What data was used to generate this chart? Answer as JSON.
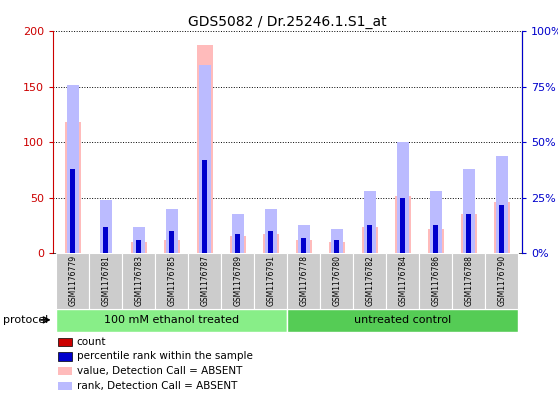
{
  "title": "GDS5082 / Dr.25246.1.S1_at",
  "samples": [
    "GSM1176779",
    "GSM1176781",
    "GSM1176783",
    "GSM1176785",
    "GSM1176787",
    "GSM1176789",
    "GSM1176791",
    "GSM1176778",
    "GSM1176780",
    "GSM1176782",
    "GSM1176784",
    "GSM1176786",
    "GSM1176788",
    "GSM1176790"
  ],
  "absent_value": [
    118,
    0,
    10,
    12,
    188,
    16,
    18,
    12,
    10,
    24,
    52,
    22,
    36,
    46
  ],
  "absent_rank": [
    76,
    24,
    12,
    20,
    85,
    18,
    20,
    13,
    11,
    28,
    50,
    28,
    38,
    44
  ],
  "count_val": [
    5,
    4,
    2,
    4,
    6,
    2,
    3,
    2,
    2,
    2,
    4,
    2,
    4,
    4
  ],
  "rank_val": [
    38,
    12,
    6,
    10,
    42,
    9,
    10,
    7,
    6,
    13,
    25,
    13,
    18,
    22
  ],
  "groups": [
    {
      "label": "100 mM ethanol treated",
      "start": 0,
      "end": 6,
      "color": "#88ee88"
    },
    {
      "label": "untreated control",
      "start": 7,
      "end": 13,
      "color": "#55cc55"
    }
  ],
  "ylim_left": [
    0,
    200
  ],
  "ylim_right": [
    0,
    100
  ],
  "yticks_left": [
    0,
    50,
    100,
    150,
    200
  ],
  "ytick_labels_left": [
    "0",
    "50",
    "100",
    "150",
    "200"
  ],
  "yticks_right": [
    0,
    25,
    50,
    75,
    100
  ],
  "ytick_labels_right": [
    "0%",
    "25%",
    "50%",
    "75%",
    "100%"
  ],
  "color_count": "#cc0000",
  "color_rank": "#0000cc",
  "color_absent_value": "#ffbbbb",
  "color_absent_rank": "#bbbbff",
  "legend_items": [
    {
      "label": "count",
      "color": "#cc0000"
    },
    {
      "label": "percentile rank within the sample",
      "color": "#0000cc"
    },
    {
      "label": "value, Detection Call = ABSENT",
      "color": "#ffbbbb"
    },
    {
      "label": "rank, Detection Call = ABSENT",
      "color": "#bbbbff"
    }
  ],
  "protocol_label": "protocol",
  "tick_bg_color": "#cccccc",
  "absent_bar_width": 0.5,
  "rank_bar_width": 0.25,
  "count_bar_width": 0.15
}
